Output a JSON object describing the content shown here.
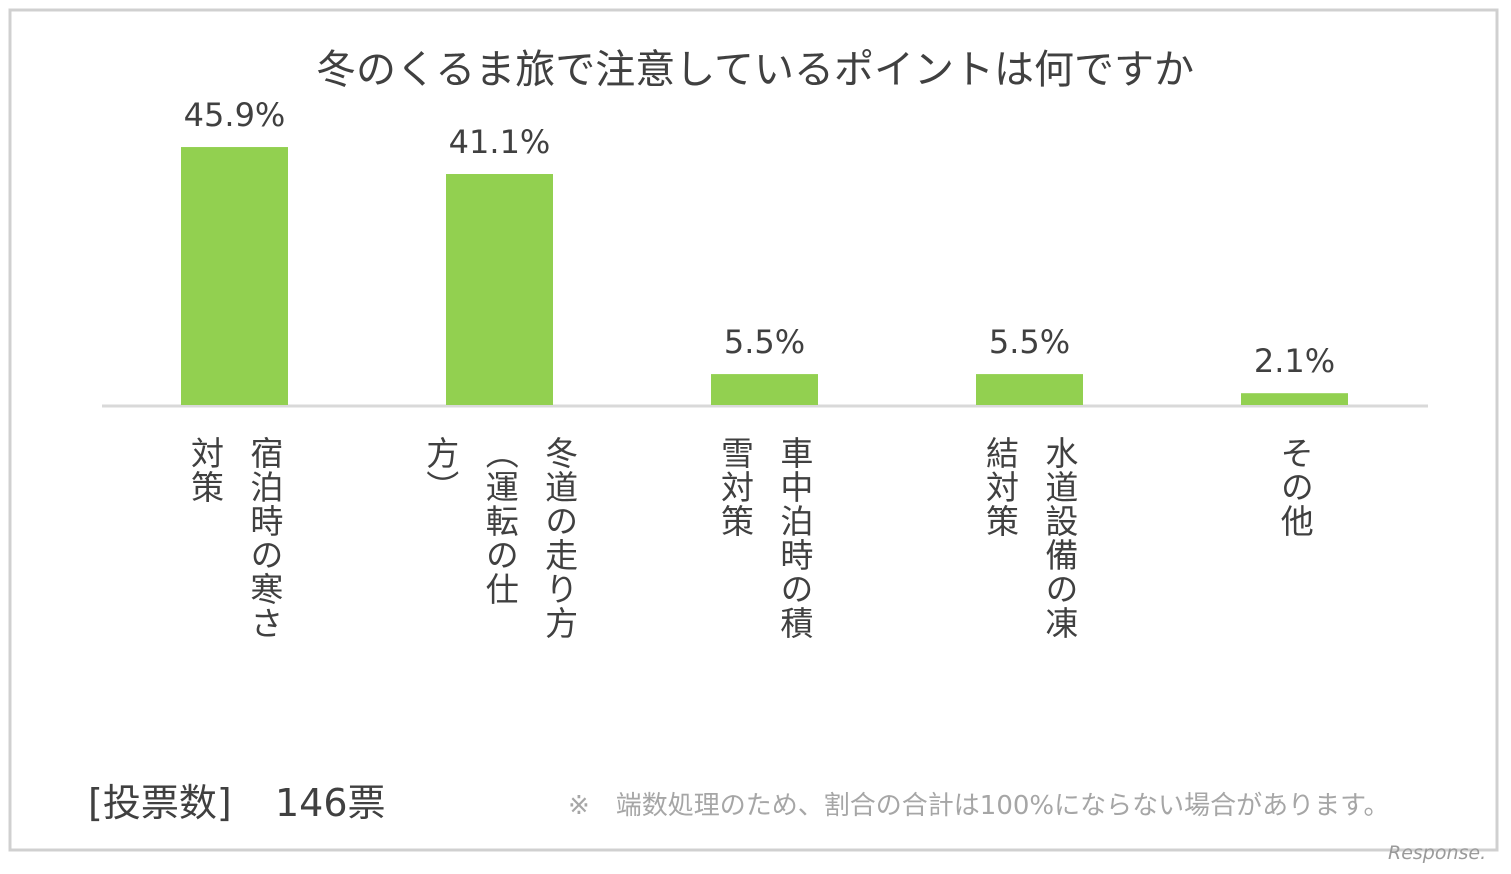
{
  "chart_data": {
    "type": "bar",
    "title": "冬のくるま旅で注意しているポイントは何ですか",
    "categories": [
      "宿泊時の寒さ対策",
      "冬道の走り方（運転の仕方）",
      "車中泊時の積雪対策",
      "水道設備の凍結対策",
      "その他"
    ],
    "values": [
      45.9,
      41.1,
      5.5,
      5.5,
      2.1
    ],
    "value_labels": [
      "45.9%",
      "41.1%",
      "5.5%",
      "5.5%",
      "2.1%"
    ],
    "color": "#92d050",
    "ylim": [
      0,
      50
    ],
    "votes_label": "[投票数]",
    "votes": "146票",
    "note": "※　端数処理のため、割合の合計は100%にならない場合があります。",
    "watermark": "Response."
  }
}
